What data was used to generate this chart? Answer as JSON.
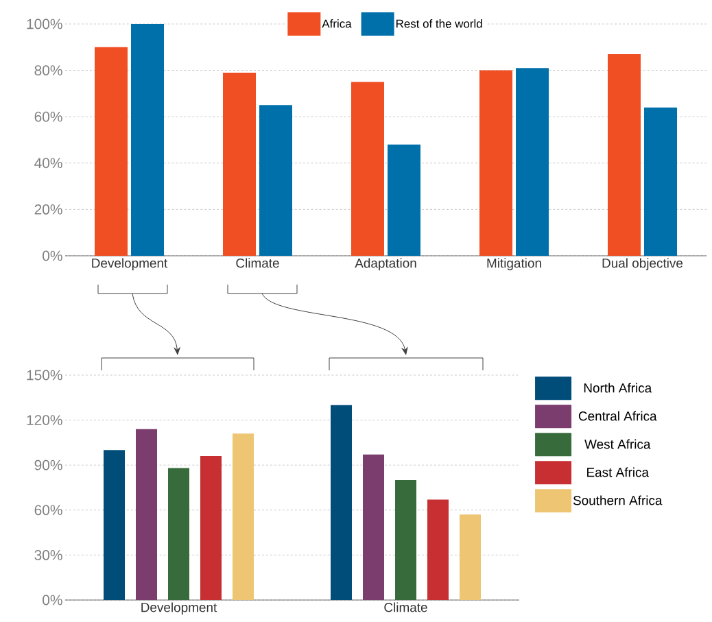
{
  "chart_data": [
    {
      "type": "bar",
      "categories": [
        "Development",
        "Climate",
        "Adaptation",
        "Mitigation",
        "Dual objective"
      ],
      "series": [
        {
          "name": "Africa",
          "color": "#f04e23",
          "values": [
            90,
            79,
            75,
            80,
            87
          ]
        },
        {
          "name": "Rest of the world",
          "color": "#0070aa",
          "values": [
            100,
            65,
            48,
            81,
            64
          ]
        }
      ],
      "ylim": [
        0,
        100
      ],
      "yticks": [
        {
          "value": 0,
          "label": "0%"
        },
        {
          "value": 20,
          "label": "20%"
        },
        {
          "value": 40,
          "label": "40%"
        },
        {
          "value": 60,
          "label": "60%"
        },
        {
          "value": 80,
          "label": "80%"
        },
        {
          "value": 100,
          "label": "100%"
        }
      ],
      "grid": "y",
      "legend": "top"
    },
    {
      "type": "bar",
      "categories": [
        "Development",
        "Climate"
      ],
      "series": [
        {
          "name": "North Africa",
          "color": "#004d7a",
          "values": [
            100,
            130
          ]
        },
        {
          "name": "Central Africa",
          "color": "#7b3c6e",
          "values": [
            114,
            97
          ]
        },
        {
          "name": "West Africa",
          "color": "#386b3b",
          "values": [
            88,
            80
          ]
        },
        {
          "name": "East Africa",
          "color": "#c72f32",
          "values": [
            96,
            67
          ]
        },
        {
          "name": "Southern Africa",
          "color": "#edc573",
          "values": [
            111,
            57
          ]
        }
      ],
      "ylim": [
        0,
        150
      ],
      "yticks": [
        {
          "value": 0,
          "label": "0%"
        },
        {
          "value": 30,
          "label": "30%"
        },
        {
          "value": 60,
          "label": "60%"
        },
        {
          "value": 90,
          "label": "90%"
        },
        {
          "value": 120,
          "label": "120%"
        },
        {
          "value": 150,
          "label": "150%"
        }
      ],
      "grid": "y",
      "legend": "right"
    }
  ]
}
